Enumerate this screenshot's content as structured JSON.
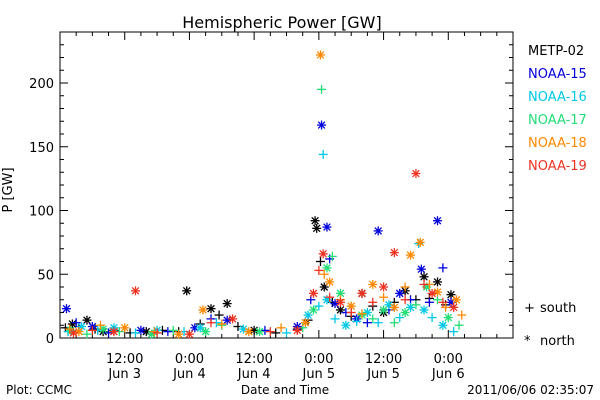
{
  "chart_data": {
    "type": "scatter",
    "title": "Hemispheric Power [GW]",
    "ylabel": "P [GW]",
    "xlabel": "Date and Time",
    "ylim": [
      0,
      240
    ],
    "xlim_hours": [
      0,
      84
    ],
    "y_ticks": [
      0,
      50,
      100,
      150,
      200
    ],
    "x_ticks": [
      {
        "hour": 12,
        "time": "12:00",
        "date": "Jun 3"
      },
      {
        "hour": 24,
        "time": "0:00",
        "date": "Jun 4"
      },
      {
        "hour": 36,
        "time": "12:00",
        "date": "Jun 4"
      },
      {
        "hour": 48,
        "time": "0:00",
        "date": "Jun 5"
      },
      {
        "hour": 60,
        "time": "12:00",
        "date": "Jun 5"
      },
      {
        "hour": 72,
        "time": "0:00",
        "date": "Jun 6"
      }
    ],
    "x_origin": "2011-06-02 15:00",
    "markers": {
      "south": "+",
      "north": "*"
    },
    "series": [
      {
        "name": "METP-02",
        "color": "#000000",
        "points": [
          [
            1,
            8,
            "s"
          ],
          [
            2.3,
            11,
            "n"
          ],
          [
            3.5,
            9,
            "s"
          ],
          [
            5,
            14,
            "n"
          ],
          [
            6.5,
            7,
            "s"
          ],
          [
            8,
            5,
            "n"
          ],
          [
            10,
            6,
            "s"
          ],
          [
            13,
            4,
            "s"
          ],
          [
            16,
            5,
            "n"
          ],
          [
            19,
            6,
            "s"
          ],
          [
            22,
            5,
            "s"
          ],
          [
            23.5,
            37,
            "n"
          ],
          [
            26,
            11,
            "s"
          ],
          [
            28,
            23,
            "n"
          ],
          [
            29.5,
            18,
            "s"
          ],
          [
            31,
            27,
            "n"
          ],
          [
            33,
            9,
            "s"
          ],
          [
            36,
            6,
            "n"
          ],
          [
            40,
            4,
            "s"
          ],
          [
            44,
            7,
            "s"
          ],
          [
            46,
            14,
            "s"
          ],
          [
            47.3,
            92,
            "n"
          ],
          [
            47.6,
            86,
            "n"
          ],
          [
            48.3,
            60,
            "s"
          ],
          [
            49,
            40,
            "n"
          ],
          [
            50.5,
            28,
            "s"
          ],
          [
            52,
            22,
            "n"
          ],
          [
            54,
            17,
            "s"
          ],
          [
            56,
            35,
            "n"
          ],
          [
            58,
            25,
            "s"
          ],
          [
            60,
            20,
            "n"
          ],
          [
            62,
            28,
            "s"
          ],
          [
            64,
            37,
            "n"
          ],
          [
            66,
            30,
            "s"
          ],
          [
            67.5,
            48,
            "n"
          ],
          [
            68.5,
            31,
            "s"
          ],
          [
            70,
            44,
            "n"
          ],
          [
            71.5,
            26,
            "s"
          ],
          [
            72.5,
            34,
            "n"
          ]
        ]
      },
      {
        "name": "NOAA-15",
        "color": "#0000dd",
        "points": [
          [
            1.2,
            23,
            "n"
          ],
          [
            3,
            12,
            "s"
          ],
          [
            6,
            9,
            "n"
          ],
          [
            9,
            4,
            "s"
          ],
          [
            15,
            6,
            "n"
          ],
          [
            20,
            5,
            "s"
          ],
          [
            25,
            8,
            "n"
          ],
          [
            28,
            15,
            "s"
          ],
          [
            31,
            14,
            "n"
          ],
          [
            38,
            6,
            "s"
          ],
          [
            44,
            9,
            "n"
          ],
          [
            46.5,
            30,
            "s"
          ],
          [
            48.5,
            167,
            "n"
          ],
          [
            49.5,
            87,
            "n"
          ],
          [
            50,
            62,
            "s"
          ],
          [
            51,
            27,
            "n"
          ],
          [
            53,
            20,
            "s"
          ],
          [
            55,
            15,
            "n"
          ],
          [
            57,
            12,
            "s"
          ],
          [
            59,
            84,
            "n"
          ],
          [
            61,
            22,
            "s"
          ],
          [
            63,
            35,
            "n"
          ],
          [
            65,
            30,
            "s"
          ],
          [
            67,
            54,
            "n"
          ],
          [
            68.5,
            28,
            "s"
          ],
          [
            70,
            92,
            "n"
          ],
          [
            71,
            55,
            "s"
          ],
          [
            72.5,
            28,
            "n"
          ]
        ]
      },
      {
        "name": "NOAA-16",
        "color": "#00c8e6",
        "points": [
          [
            1.5,
            5,
            "s"
          ],
          [
            4,
            9,
            "n"
          ],
          [
            7,
            6,
            "s"
          ],
          [
            10,
            8,
            "n"
          ],
          [
            14,
            4,
            "s"
          ],
          [
            18,
            6,
            "n"
          ],
          [
            23,
            5,
            "s"
          ],
          [
            26,
            8,
            "n"
          ],
          [
            29,
            12,
            "s"
          ],
          [
            34,
            7,
            "n"
          ],
          [
            42,
            4,
            "s"
          ],
          [
            46,
            18,
            "n"
          ],
          [
            48,
            25,
            "s"
          ],
          [
            48.8,
            144,
            "s"
          ],
          [
            49.5,
            30,
            "n"
          ],
          [
            51,
            15,
            "s"
          ],
          [
            53,
            10,
            "n"
          ],
          [
            55,
            13,
            "s"
          ],
          [
            57,
            20,
            "n"
          ],
          [
            59,
            12,
            "s"
          ],
          [
            61,
            26,
            "n"
          ],
          [
            63,
            16,
            "s"
          ],
          [
            65,
            24,
            "n"
          ],
          [
            66.5,
            74,
            "s"
          ],
          [
            67.5,
            22,
            "n"
          ],
          [
            69,
            16,
            "s"
          ],
          [
            71,
            10,
            "n"
          ],
          [
            73,
            5,
            "s"
          ]
        ]
      },
      {
        "name": "NOAA-17",
        "color": "#22dd77",
        "points": [
          [
            2,
            6,
            "n"
          ],
          [
            5,
            3,
            "s"
          ],
          [
            8,
            7,
            "n"
          ],
          [
            11,
            5,
            "s"
          ],
          [
            17,
            3,
            "n"
          ],
          [
            21,
            6,
            "s"
          ],
          [
            27,
            5,
            "n"
          ],
          [
            30,
            10,
            "s"
          ],
          [
            37,
            5,
            "n"
          ],
          [
            45,
            8,
            "s"
          ],
          [
            47,
            22,
            "n"
          ],
          [
            48.5,
            195,
            "s"
          ],
          [
            49.5,
            55,
            "n"
          ],
          [
            50.5,
            64,
            "s"
          ],
          [
            52,
            35,
            "n"
          ],
          [
            54,
            25,
            "s"
          ],
          [
            56,
            18,
            "n"
          ],
          [
            58,
            15,
            "s"
          ],
          [
            60,
            22,
            "n"
          ],
          [
            62,
            12,
            "s"
          ],
          [
            64,
            20,
            "n"
          ],
          [
            66,
            26,
            "s"
          ],
          [
            68,
            40,
            "n"
          ],
          [
            70,
            30,
            "s"
          ],
          [
            72,
            16,
            "n"
          ],
          [
            74,
            10,
            "s"
          ]
        ]
      },
      {
        "name": "NOAA-18",
        "color": "#ff8800",
        "points": [
          [
            1.8,
            7,
            "s"
          ],
          [
            3.5,
            5,
            "n"
          ],
          [
            7.5,
            10,
            "s"
          ],
          [
            12,
            8,
            "n"
          ],
          [
            17.5,
            5,
            "s"
          ],
          [
            22,
            3,
            "n"
          ],
          [
            26.5,
            22,
            "n"
          ],
          [
            30,
            11,
            "s"
          ],
          [
            35,
            5,
            "n"
          ],
          [
            41,
            8,
            "s"
          ],
          [
            45.5,
            12,
            "n"
          ],
          [
            48.3,
            222,
            "n"
          ],
          [
            49,
            50,
            "s"
          ],
          [
            50,
            44,
            "n"
          ],
          [
            52,
            30,
            "s"
          ],
          [
            54,
            25,
            "n"
          ],
          [
            56,
            19,
            "s"
          ],
          [
            58,
            42,
            "n"
          ],
          [
            60,
            32,
            "s"
          ],
          [
            62,
            24,
            "n"
          ],
          [
            64,
            40,
            "s"
          ],
          [
            65,
            65,
            "n"
          ],
          [
            66.8,
            75,
            "n"
          ],
          [
            68.5,
            42,
            "s"
          ],
          [
            70,
            36,
            "n"
          ],
          [
            71.5,
            24,
            "s"
          ],
          [
            73.5,
            30,
            "n"
          ],
          [
            74.5,
            18,
            "s"
          ]
        ]
      },
      {
        "name": "NOAA-19",
        "color": "#ee3322",
        "points": [
          [
            2.5,
            4,
            "n"
          ],
          [
            6,
            6,
            "s"
          ],
          [
            10,
            5,
            "n"
          ],
          [
            14,
            37,
            "n"
          ],
          [
            18,
            4,
            "s"
          ],
          [
            24,
            3,
            "n"
          ],
          [
            28,
            12,
            "s"
          ],
          [
            32,
            15,
            "n"
          ],
          [
            39,
            5,
            "s"
          ],
          [
            44,
            6,
            "n"
          ],
          [
            47,
            35,
            "n"
          ],
          [
            48,
            53,
            "s"
          ],
          [
            48.8,
            66,
            "n"
          ],
          [
            50,
            32,
            "s"
          ],
          [
            52,
            28,
            "n"
          ],
          [
            54,
            20,
            "s"
          ],
          [
            56,
            35,
            "n"
          ],
          [
            58,
            28,
            "s"
          ],
          [
            60,
            40,
            "n"
          ],
          [
            62,
            67,
            "n"
          ],
          [
            64,
            30,
            "s"
          ],
          [
            66,
            129,
            "n"
          ],
          [
            67.5,
            42,
            "s"
          ],
          [
            69,
            35,
            "n"
          ],
          [
            71,
            28,
            "s"
          ],
          [
            73,
            24,
            "n"
          ]
        ]
      }
    ]
  },
  "legend": {
    "series_labels": [
      "METP-02",
      "NOAA-15",
      "NOAA-16",
      "NOAA-17",
      "NOAA-18",
      "NOAA-19"
    ],
    "south_label": "south",
    "north_label": "north",
    "south_symbol": "+",
    "north_symbol": "*"
  },
  "footer": {
    "left": "Plot: CCMC",
    "center": "Date and Time",
    "right": "2011/06/06 02:35:07"
  }
}
